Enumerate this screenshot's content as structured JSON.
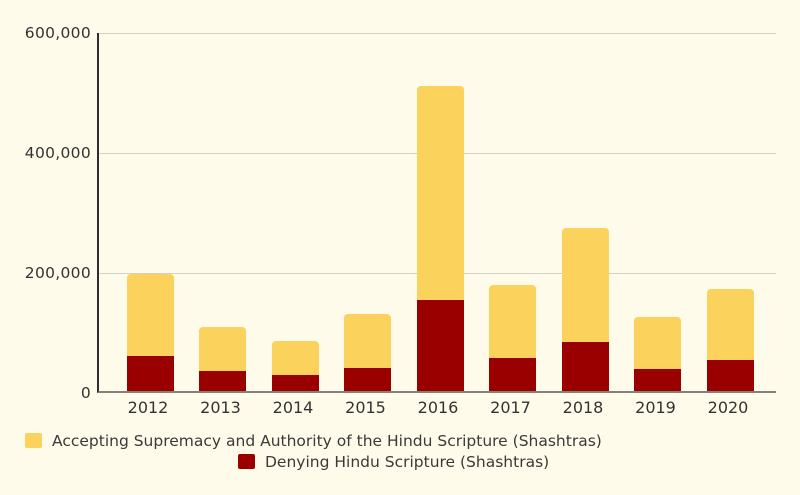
{
  "chart_data": {
    "type": "bar",
    "stacked": true,
    "title": "",
    "xlabel": "",
    "ylabel": "",
    "categories": [
      "2012",
      "2013",
      "2014",
      "2015",
      "2016",
      "2017",
      "2018",
      "2019",
      "2020"
    ],
    "series": [
      {
        "name": "Accepting Supremacy and Authority of the Hindu Scripture (Shashtras)",
        "color": "#FBD25B",
        "values": [
          137000,
          73000,
          58000,
          90000,
          356000,
          122000,
          190000,
          86000,
          118000
        ]
      },
      {
        "name": "Denying Hindu Scripture (Shashtras)",
        "color": "#9A0000",
        "values": [
          58000,
          33000,
          26000,
          38000,
          152000,
          55000,
          82000,
          37000,
          52000
        ]
      }
    ],
    "stack_order_bottom_to_top": [
      "Denying Hindu Scripture (Shashtras)",
      "Accepting Supremacy and Authority of the Hindu Scripture (Shashtras)"
    ],
    "totals": [
      195000,
      106000,
      84000,
      128000,
      508000,
      177000,
      272000,
      123000,
      170000
    ],
    "ylim": [
      0,
      600000
    ],
    "yticks": [
      {
        "value": 0,
        "label": "0"
      },
      {
        "value": 200000,
        "label": "200,000"
      },
      {
        "value": 400000,
        "label": "400,000"
      },
      {
        "value": 600000,
        "label": "600,000"
      }
    ],
    "grid": true,
    "legend_position": "bottom"
  },
  "colors": {
    "background": "#FFFBEA",
    "accepting_bar": "#FBD25B",
    "denying_bar": "#9A0000",
    "axis_text": "#333333",
    "gridline": "#D4D2C6",
    "y_axis_line": "#2E2E2E",
    "x_axis_line": "#82827A"
  }
}
